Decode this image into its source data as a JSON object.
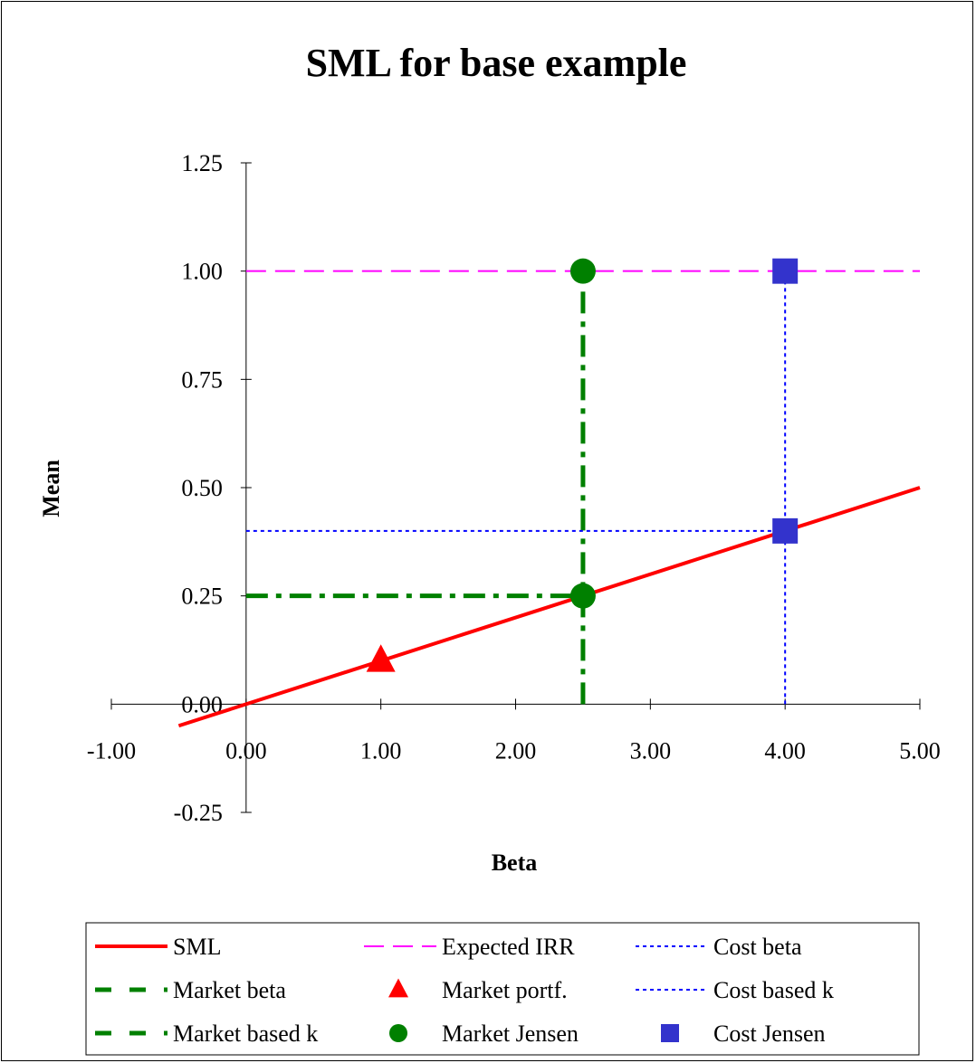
{
  "chart_data": {
    "type": "line",
    "title": "SML for base example",
    "xlabel": "Beta",
    "ylabel": "Mean",
    "xlim": [
      -1.0,
      5.0
    ],
    "ylim": [
      -0.25,
      1.25
    ],
    "x_ticks": [
      -1.0,
      0.0,
      1.0,
      2.0,
      3.0,
      4.0,
      5.0
    ],
    "y_ticks": [
      -0.25,
      0.0,
      0.25,
      0.5,
      0.75,
      1.0,
      1.25
    ],
    "x_tick_labels": [
      "-1.00",
      "0.00",
      "1.00",
      "2.00",
      "3.00",
      "4.00",
      "5.00"
    ],
    "y_tick_labels": [
      "-0.25",
      "0.00",
      "0.25",
      "0.50",
      "0.75",
      "1.00",
      "1.25"
    ],
    "grid": false,
    "legend_position": "bottom",
    "series": [
      {
        "name": "SML",
        "kind": "line",
        "color": "#ff0000",
        "dash": "solid",
        "x": [
          -0.5,
          5.0
        ],
        "y": [
          -0.05,
          0.5
        ]
      },
      {
        "name": "Expected IRR",
        "kind": "line",
        "color": "#ff00ff",
        "dash": "dashed",
        "x": [
          0.0,
          5.0
        ],
        "y": [
          1.0,
          1.0
        ]
      },
      {
        "name": "Cost beta",
        "kind": "line",
        "color": "#0000ff",
        "dash": "dotted",
        "x": [
          4.0,
          4.0
        ],
        "y": [
          0.0,
          1.0
        ]
      },
      {
        "name": "Market beta",
        "kind": "line",
        "color": "#008000",
        "dash": "dashdot",
        "x": [
          2.5,
          2.5
        ],
        "y": [
          0.0,
          1.0
        ]
      },
      {
        "name": "Market portf.",
        "kind": "marker",
        "marker": "triangle",
        "color": "#ff0000",
        "x": [
          1.0
        ],
        "y": [
          0.1
        ]
      },
      {
        "name": "Cost based k",
        "kind": "line",
        "color": "#0000ff",
        "dash": "dotted",
        "x": [
          0.0,
          4.0
        ],
        "y": [
          0.4,
          0.4
        ]
      },
      {
        "name": "Market based k",
        "kind": "line",
        "color": "#008000",
        "dash": "dashdot",
        "x": [
          0.0,
          2.5
        ],
        "y": [
          0.25,
          0.25
        ]
      },
      {
        "name": "Market Jensen",
        "kind": "marker",
        "marker": "circle",
        "color": "#008000",
        "x": [
          2.5,
          2.5
        ],
        "y": [
          0.25,
          1.0
        ]
      },
      {
        "name": "Cost Jensen",
        "kind": "marker",
        "marker": "square",
        "color": "#3333cc",
        "x": [
          4.0,
          4.0
        ],
        "y": [
          0.4,
          1.0
        ]
      }
    ]
  }
}
